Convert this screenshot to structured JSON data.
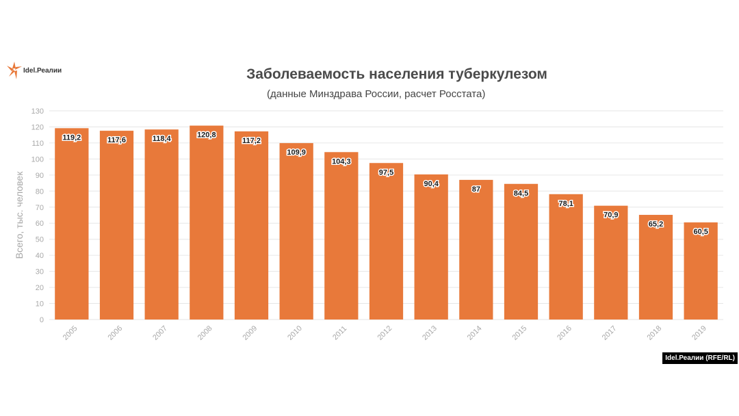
{
  "brand": {
    "logo_text": "Idel.Реалии",
    "credit": "Idel.Реалии (RFE/RL)"
  },
  "colors": {
    "bar": "#e8793a",
    "grid": "#e6e6e6",
    "axis_text": "#a8a8a8"
  },
  "chart_data": {
    "type": "bar",
    "title": "Заболеваемость населения туберкулезом",
    "subtitle": "(данные Минздрава России, расчет Росстата)",
    "xlabel": "",
    "ylabel": "Всего, тыс. человек",
    "categories": [
      "2005",
      "2006",
      "2007",
      "2008",
      "2009",
      "2010",
      "2011",
      "2012",
      "2013",
      "2014",
      "2015",
      "2016",
      "2017",
      "2018",
      "2019"
    ],
    "values": [
      119.2,
      117.6,
      118.4,
      120.8,
      117.2,
      109.9,
      104.3,
      97.5,
      90.4,
      87,
      84.5,
      78.1,
      70.9,
      65.2,
      60.5
    ],
    "data_labels": [
      "119,2",
      "117,6",
      "118,4",
      "120,8",
      "117,2",
      "109,9",
      "104,3",
      "97,5",
      "90,4",
      "87",
      "84,5",
      "78,1",
      "70,9",
      "65,2",
      "60,5"
    ],
    "ylim": [
      0,
      130
    ],
    "yticks": [
      0,
      10,
      20,
      30,
      40,
      50,
      60,
      70,
      80,
      90,
      100,
      110,
      120,
      130
    ],
    "grid": true
  }
}
